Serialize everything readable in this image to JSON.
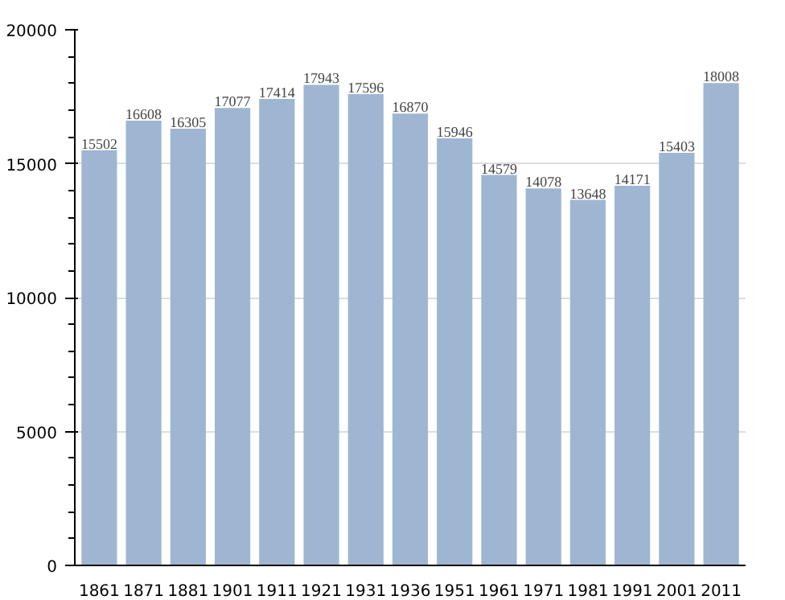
{
  "chart_data": {
    "type": "bar",
    "categories": [
      "1861",
      "1871",
      "1881",
      "1901",
      "1911",
      "1921",
      "1931",
      "1936",
      "1951",
      "1961",
      "1971",
      "1981",
      "1991",
      "2001",
      "2011"
    ],
    "values": [
      15502,
      16608,
      16305,
      17077,
      17414,
      17943,
      17596,
      16870,
      15946,
      14579,
      14078,
      13648,
      14171,
      15403,
      18008
    ],
    "color": "#9fb6d2",
    "ylim": [
      0,
      20000
    ],
    "yticks": [
      0,
      5000,
      10000,
      15000,
      20000
    ],
    "grid": "y",
    "data_labels": true
  }
}
